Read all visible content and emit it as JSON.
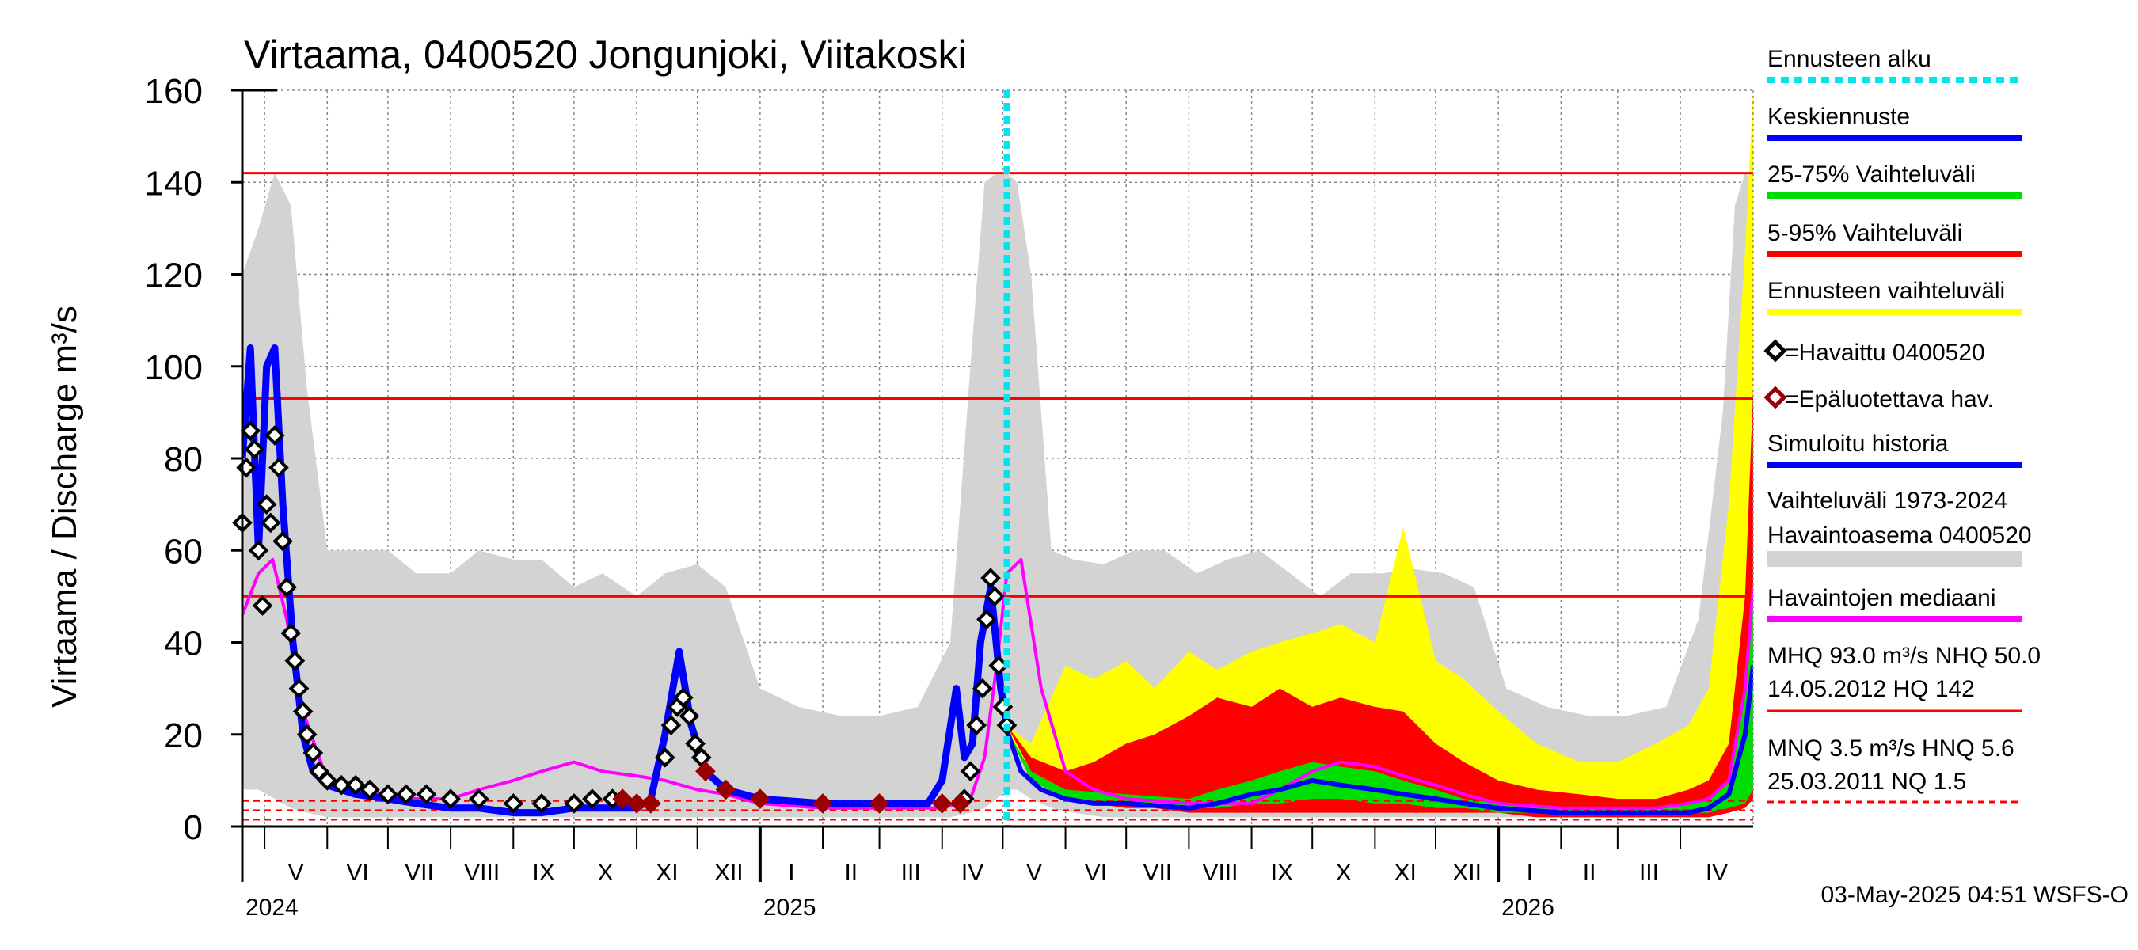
{
  "chart_data": {
    "type": "area",
    "title": "Virtaama, 0400520 Jongunjoki, Viitakoski",
    "ylabel": "Virtaama / Discharge    m³/s",
    "ylim": [
      0,
      160
    ],
    "y_ticks": [
      "0",
      "20",
      "40",
      "60",
      "80",
      "100",
      "120",
      "140",
      "160"
    ],
    "x_range": [
      "2024-04-20",
      "2026-05-07"
    ],
    "months": [
      {
        "label": "V",
        "date": "2024-05-01"
      },
      {
        "label": "VI",
        "date": "2024-06-01"
      },
      {
        "label": "VII",
        "date": "2024-07-01"
      },
      {
        "label": "VIII",
        "date": "2024-08-01"
      },
      {
        "label": "IX",
        "date": "2024-09-01"
      },
      {
        "label": "X",
        "date": "2024-10-01"
      },
      {
        "label": "XI",
        "date": "2024-11-01"
      },
      {
        "label": "XII",
        "date": "2024-12-01"
      },
      {
        "label": "I",
        "date": "2025-01-01"
      },
      {
        "label": "II",
        "date": "2025-02-01"
      },
      {
        "label": "III",
        "date": "2025-03-01"
      },
      {
        "label": "IV",
        "date": "2025-04-01"
      },
      {
        "label": "V",
        "date": "2025-05-01"
      },
      {
        "label": "VI",
        "date": "2025-06-01"
      },
      {
        "label": "VII",
        "date": "2025-07-01"
      },
      {
        "label": "VIII",
        "date": "2025-08-01"
      },
      {
        "label": "IX",
        "date": "2025-09-01"
      },
      {
        "label": "X",
        "date": "2025-10-01"
      },
      {
        "label": "XI",
        "date": "2025-11-01"
      },
      {
        "label": "XII",
        "date": "2025-12-01"
      },
      {
        "label": "I",
        "date": "2026-01-01"
      },
      {
        "label": "II",
        "date": "2026-02-01"
      },
      {
        "label": "III",
        "date": "2026-03-01"
      },
      {
        "label": "IV",
        "date": "2026-04-01"
      }
    ],
    "years": [
      {
        "label": "2024",
        "date": "2024-04-20"
      },
      {
        "label": "2025",
        "date": "2025-01-01"
      },
      {
        "label": "2026",
        "date": "2026-01-01"
      }
    ],
    "forecast_start": "2025-05-03",
    "reference_lines": [
      {
        "name": "HQ",
        "value": 142,
        "style": "solid",
        "color": "#ff0000"
      },
      {
        "name": "MHQ",
        "value": 93,
        "style": "solid",
        "color": "#ff0000"
      },
      {
        "name": "NHQ",
        "value": 50,
        "style": "solid",
        "color": "#ff0000"
      },
      {
        "name": "HNQ",
        "value": 5.6,
        "style": "dashed",
        "color": "#ff0000"
      },
      {
        "name": "MNQ",
        "value": 3.5,
        "style": "dashed",
        "color": "#ff0000"
      },
      {
        "name": "NQ",
        "value": 1.5,
        "style": "dashed",
        "color": "#ff0000"
      }
    ],
    "series": [
      {
        "name": "Vaihteluväli 1973-2024 Havaintoasema 0400520",
        "kind": "band",
        "color": "#d3d3d3",
        "x": [
          "2024-04-20",
          "2024-04-28",
          "2024-05-06",
          "2024-05-14",
          "2024-05-22",
          "2024-06-01",
          "2024-06-15",
          "2024-07-01",
          "2024-07-15",
          "2024-08-01",
          "2024-08-15",
          "2024-09-01",
          "2024-09-15",
          "2024-10-01",
          "2024-10-15",
          "2024-11-01",
          "2024-11-15",
          "2024-12-01",
          "2024-12-15",
          "2025-01-01",
          "2025-01-20",
          "2025-02-10",
          "2025-03-01",
          "2025-03-20",
          "2025-04-05",
          "2025-04-15",
          "2025-04-22",
          "2025-04-28",
          "2025-05-03",
          "2025-05-08",
          "2025-05-15",
          "2025-05-25",
          "2025-06-05",
          "2025-06-20",
          "2025-07-05",
          "2025-07-20",
          "2025-08-05",
          "2025-08-20",
          "2025-09-05",
          "2025-09-20",
          "2025-10-05",
          "2025-10-20",
          "2025-11-05",
          "2025-11-20",
          "2025-12-05",
          "2025-12-20",
          "2026-01-05",
          "2026-01-25",
          "2026-02-15",
          "2026-03-05",
          "2026-03-25",
          "2026-04-10",
          "2026-04-22",
          "2026-04-28",
          "2026-05-03",
          "2026-05-07"
        ],
        "low": [
          8,
          8,
          6,
          4,
          3,
          2,
          2,
          2,
          2,
          2,
          2,
          2,
          2,
          2,
          2,
          2,
          2,
          2,
          2,
          2,
          2,
          2,
          2,
          2,
          2,
          3,
          4,
          6,
          8,
          8,
          6,
          4,
          3,
          2,
          2,
          2,
          2,
          2,
          2,
          2,
          2,
          2,
          2,
          2,
          2,
          2,
          2,
          2,
          2,
          2,
          2,
          3,
          5,
          7,
          9,
          10
        ],
        "high": [
          120,
          130,
          142,
          135,
          95,
          60,
          60,
          60,
          55,
          55,
          60,
          58,
          58,
          52,
          55,
          50,
          55,
          57,
          52,
          30,
          26,
          24,
          24,
          26,
          40,
          100,
          140,
          142,
          142,
          140,
          120,
          60,
          58,
          57,
          60,
          60,
          55,
          58,
          60,
          55,
          50,
          55,
          55,
          56,
          55,
          52,
          30,
          26,
          24,
          24,
          26,
          45,
          90,
          135,
          142,
          140
        ]
      },
      {
        "name": "Ennusteen vaihteluväli",
        "kind": "band",
        "color": "#ffff00",
        "x": [
          "2025-05-03",
          "2025-05-15",
          "2025-06-01",
          "2025-06-15",
          "2025-07-01",
          "2025-07-15",
          "2025-08-01",
          "2025-08-15",
          "2025-09-01",
          "2025-09-15",
          "2025-10-01",
          "2025-10-15",
          "2025-11-01",
          "2025-11-15",
          "2025-12-01",
          "2025-12-15",
          "2026-01-01",
          "2026-01-20",
          "2026-02-10",
          "2026-03-01",
          "2026-03-20",
          "2026-04-05",
          "2026-04-15",
          "2026-04-25",
          "2026-05-03",
          "2026-05-07"
        ],
        "low": [
          22,
          10,
          6,
          5,
          4,
          4,
          4,
          4,
          4,
          4,
          4,
          4,
          4,
          3,
          3,
          3,
          3,
          3,
          3,
          3,
          3,
          3,
          3,
          4,
          6,
          8
        ],
        "high": [
          22,
          18,
          35,
          32,
          36,
          30,
          38,
          34,
          38,
          40,
          42,
          44,
          40,
          65,
          36,
          32,
          25,
          18,
          14,
          14,
          18,
          22,
          30,
          70,
          125,
          160
        ]
      },
      {
        "name": "5-95% Vaihteluväli",
        "kind": "band",
        "color": "#ff0000",
        "x": [
          "2025-05-03",
          "2025-05-15",
          "2025-06-01",
          "2025-06-15",
          "2025-07-01",
          "2025-07-15",
          "2025-08-01",
          "2025-08-15",
          "2025-09-01",
          "2025-09-15",
          "2025-10-01",
          "2025-10-15",
          "2025-11-01",
          "2025-11-15",
          "2025-12-01",
          "2025-12-15",
          "2026-01-01",
          "2026-01-20",
          "2026-02-10",
          "2026-03-01",
          "2026-03-20",
          "2026-04-05",
          "2026-04-15",
          "2026-04-25",
          "2026-05-03",
          "2026-05-07"
        ],
        "low": [
          22,
          12,
          7,
          5,
          4,
          4,
          3,
          3,
          3,
          3,
          3,
          3,
          3,
          3,
          3,
          3,
          3,
          2,
          2,
          2,
          2,
          2,
          2,
          3,
          4,
          6
        ],
        "high": [
          22,
          15,
          12,
          14,
          18,
          20,
          24,
          28,
          26,
          30,
          26,
          28,
          26,
          25,
          18,
          14,
          10,
          8,
          7,
          6,
          6,
          8,
          10,
          18,
          50,
          95
        ]
      },
      {
        "name": "25-75% Vaihteluväli",
        "kind": "band",
        "color": "#00dd00",
        "x": [
          "2025-05-03",
          "2025-05-15",
          "2025-06-01",
          "2025-07-01",
          "2025-08-01",
          "2025-08-15",
          "2025-09-01",
          "2025-09-15",
          "2025-10-01",
          "2025-10-15",
          "2025-11-01",
          "2025-11-15",
          "2025-12-01",
          "2025-12-15",
          "2026-01-01",
          "2026-02-01",
          "2026-03-01",
          "2026-03-20",
          "2026-04-05",
          "2026-04-15",
          "2026-04-25",
          "2026-05-03",
          "2026-05-07"
        ],
        "low": [
          21,
          10,
          6,
          5,
          4,
          4,
          5,
          5,
          6,
          6,
          5,
          5,
          4,
          4,
          3,
          3,
          3,
          3,
          3,
          3,
          4,
          5,
          8
        ],
        "high": [
          21,
          12,
          8,
          7,
          6,
          8,
          10,
          12,
          14,
          13,
          12,
          10,
          8,
          6,
          5,
          4,
          4,
          4,
          5,
          6,
          10,
          30,
          50
        ]
      },
      {
        "name": "Havaintojen mediaani",
        "kind": "line",
        "color": "#ff00ff",
        "x": [
          "2024-04-20",
          "2024-04-28",
          "2024-05-05",
          "2024-05-12",
          "2024-05-20",
          "2024-06-01",
          "2024-06-15",
          "2024-07-01",
          "2024-07-15",
          "2024-08-01",
          "2024-08-15",
          "2024-09-01",
          "2024-09-15",
          "2024-10-01",
          "2024-10-15",
          "2024-11-01",
          "2024-11-15",
          "2024-12-01",
          "2024-12-15",
          "2025-01-01",
          "2025-02-01",
          "2025-03-01",
          "2025-04-01",
          "2025-04-15",
          "2025-04-22",
          "2025-04-28",
          "2025-05-03",
          "2025-05-10",
          "2025-05-20",
          "2025-06-01",
          "2025-06-15",
          "2025-07-01",
          "2025-08-01",
          "2025-09-01",
          "2025-09-15",
          "2025-10-01",
          "2025-10-15",
          "2025-11-01",
          "2025-11-15",
          "2025-12-01",
          "2025-12-15",
          "2026-01-01",
          "2026-02-01",
          "2026-03-01",
          "2026-03-20",
          "2026-04-05",
          "2026-04-15",
          "2026-04-25",
          "2026-05-03",
          "2026-05-07"
        ],
        "y": [
          46,
          55,
          58,
          45,
          25,
          10,
          8,
          7,
          6,
          6,
          8,
          10,
          12,
          14,
          12,
          11,
          10,
          8,
          7,
          5,
          4,
          4,
          4,
          6,
          15,
          35,
          55,
          58,
          30,
          12,
          8,
          6,
          5,
          5,
          8,
          12,
          14,
          13,
          11,
          9,
          7,
          5,
          4,
          4,
          4,
          5,
          6,
          10,
          30,
          52
        ]
      },
      {
        "name": "Simuloitu historia",
        "kind": "line",
        "color": "#0000ff",
        "x": [
          "2024-04-20",
          "2024-04-24",
          "2024-04-28",
          "2024-05-02",
          "2024-05-06",
          "2024-05-10",
          "2024-05-15",
          "2024-05-20",
          "2024-05-25",
          "2024-06-01",
          "2024-06-15",
          "2024-07-01",
          "2024-07-15",
          "2024-08-01",
          "2024-08-15",
          "2024-09-01",
          "2024-09-15",
          "2024-10-01",
          "2024-10-15",
          "2024-11-01",
          "2024-11-08",
          "2024-11-15",
          "2024-11-22",
          "2024-11-28",
          "2024-12-05",
          "2024-12-15",
          "2025-01-01",
          "2025-02-01",
          "2025-03-01",
          "2025-03-25",
          "2025-04-01",
          "2025-04-08",
          "2025-04-12",
          "2025-04-16",
          "2025-04-20",
          "2025-04-25",
          "2025-04-30",
          "2025-05-03"
        ],
        "y": [
          80,
          104,
          60,
          100,
          104,
          70,
          40,
          20,
          12,
          9,
          7,
          6,
          5,
          4,
          4,
          3,
          3,
          4,
          4,
          4,
          6,
          20,
          38,
          22,
          12,
          8,
          6,
          5,
          5,
          5,
          10,
          30,
          15,
          18,
          40,
          52,
          30,
          22
        ]
      },
      {
        "name": "Keskiennuste",
        "kind": "line",
        "color": "#0000ff",
        "x": [
          "2025-05-03",
          "2025-05-10",
          "2025-05-20",
          "2025-06-01",
          "2025-06-15",
          "2025-07-01",
          "2025-08-01",
          "2025-08-15",
          "2025-09-01",
          "2025-09-15",
          "2025-10-01",
          "2025-10-15",
          "2025-11-01",
          "2025-11-15",
          "2025-12-01",
          "2025-12-15",
          "2026-01-01",
          "2026-02-01",
          "2026-03-01",
          "2026-03-20",
          "2026-04-05",
          "2026-04-15",
          "2026-04-25",
          "2026-05-03",
          "2026-05-07"
        ],
        "y": [
          21,
          12,
          8,
          6,
          5,
          5,
          4,
          5,
          7,
          8,
          10,
          9,
          8,
          7,
          6,
          5,
          4,
          3,
          3,
          3,
          3,
          4,
          7,
          20,
          35
        ]
      },
      {
        "name": "=Havaittu 0400520",
        "kind": "markers",
        "color": "#000000",
        "x": [
          "2024-04-20",
          "2024-04-22",
          "2024-04-24",
          "2024-04-26",
          "2024-04-28",
          "2024-04-30",
          "2024-05-02",
          "2024-05-04",
          "2024-05-06",
          "2024-05-08",
          "2024-05-10",
          "2024-05-12",
          "2024-05-14",
          "2024-05-16",
          "2024-05-18",
          "2024-05-20",
          "2024-05-22",
          "2024-05-25",
          "2024-05-28",
          "2024-06-01",
          "2024-06-08",
          "2024-06-15",
          "2024-06-22",
          "2024-07-01",
          "2024-07-10",
          "2024-07-20",
          "2024-08-01",
          "2024-08-15",
          "2024-09-01",
          "2024-09-15",
          "2024-10-01",
          "2024-10-10",
          "2024-10-20",
          "2024-11-15",
          "2024-11-18",
          "2024-11-21",
          "2024-11-24",
          "2024-11-27",
          "2024-11-30",
          "2024-12-03",
          "2025-04-12",
          "2025-04-15",
          "2025-04-18",
          "2025-04-21",
          "2025-04-23",
          "2025-04-25",
          "2025-04-27",
          "2025-04-29",
          "2025-05-01",
          "2025-05-03"
        ],
        "y": [
          66,
          78,
          86,
          82,
          60,
          48,
          70,
          66,
          85,
          78,
          62,
          52,
          42,
          36,
          30,
          25,
          20,
          16,
          12,
          10,
          9,
          9,
          8,
          7,
          7,
          7,
          6,
          6,
          5,
          5,
          5,
          6,
          6,
          15,
          22,
          26,
          28,
          24,
          18,
          15,
          6,
          12,
          22,
          30,
          45,
          54,
          50,
          35,
          26,
          22
        ]
      },
      {
        "name": "=Epäluotettava hav.",
        "kind": "markers",
        "color": "#990000",
        "x": [
          "2024-10-25",
          "2024-11-01",
          "2024-11-08",
          "2024-12-05",
          "2024-12-15",
          "2025-01-01",
          "2025-02-01",
          "2025-03-01",
          "2025-04-01",
          "2025-04-10"
        ],
        "y": [
          6,
          5,
          5,
          12,
          8,
          6,
          5,
          5,
          5,
          5
        ]
      }
    ]
  },
  "legend": {
    "items": [
      {
        "label": "Ennusteen alku",
        "color": "#00e5ee",
        "style": "dotted"
      },
      {
        "label": "Keskiennuste",
        "color": "#0000ff",
        "style": "line"
      },
      {
        "label": "25-75% Vaihteluväli",
        "color": "#00dd00",
        "style": "line"
      },
      {
        "label": "5-95% Vaihteluväli",
        "color": "#ff0000",
        "style": "line"
      },
      {
        "label": "Ennusteen vaihteluväli",
        "color": "#ffff00",
        "style": "line"
      },
      {
        "label": "=Havaittu 0400520",
        "color": "#000000",
        "style": "marker"
      },
      {
        "label": "=Epäluotettava hav.",
        "color": "#990000",
        "style": "marker"
      },
      {
        "label": "Simuloitu historia",
        "color": "#0000ff",
        "style": "line"
      },
      {
        "label": "Vaihteluväli 1973-2024",
        "label2": " Havaintoasema 0400520",
        "color": "#d3d3d3",
        "style": "thick"
      },
      {
        "label": "Havaintojen mediaani",
        "color": "#ff00ff",
        "style": "line"
      },
      {
        "label": "MHQ 93.0 m³/s NHQ 50.0",
        "label2": "14.05.2012 HQ  142",
        "color": "#ff0000",
        "style": "thin"
      },
      {
        "label": "MNQ  3.5 m³/s HNQ  5.6",
        "label2": "25.03.2011 NQ  1.5",
        "color": "#ff0000",
        "style": "dashed"
      }
    ]
  },
  "footer": {
    "timestamp": "03-May-2025 04:51 WSFS-O"
  }
}
